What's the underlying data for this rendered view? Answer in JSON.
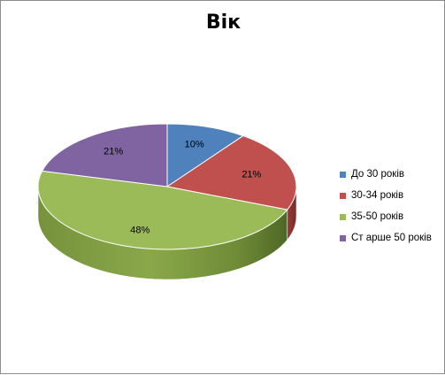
{
  "chart_data": {
    "type": "pie",
    "title": "Вік",
    "categories": [
      "До 30 років",
      "30-34 років",
      "35-50 років",
      "Ст арше 50 років"
    ],
    "values": [
      10,
      21,
      48,
      21
    ],
    "labels": [
      "10%",
      "21%",
      "48%",
      "21%"
    ],
    "colors": [
      "#4f81bd",
      "#c0504d",
      "#9bbb59",
      "#8064a2"
    ],
    "legend_position": "right",
    "three_d": true
  }
}
